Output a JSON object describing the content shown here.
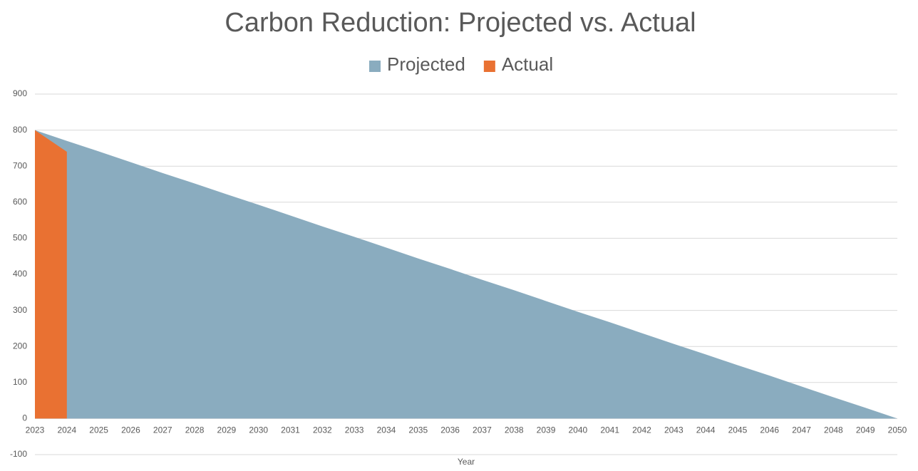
{
  "chart_data": {
    "type": "area",
    "title": "Carbon Reduction: Projected vs. Actual",
    "x_label": "Year",
    "categories": [
      "2023",
      "2024",
      "2025",
      "2026",
      "2027",
      "2028",
      "2029",
      "2030",
      "2031",
      "2032",
      "2033",
      "2034",
      "2035",
      "2036",
      "2037",
      "2038",
      "2039",
      "2040",
      "2041",
      "2042",
      "2043",
      "2044",
      "2045",
      "2046",
      "2047",
      "2048",
      "2049",
      "2050"
    ],
    "series": [
      {
        "name": "Projected",
        "color": "#8aacbf",
        "values": [
          800,
          770,
          741,
          711,
          681,
          652,
          622,
          593,
          563,
          533,
          504,
          474,
          444,
          415,
          385,
          356,
          326,
          296,
          267,
          237,
          207,
          178,
          148,
          119,
          89,
          59,
          30,
          0
        ]
      },
      {
        "name": "Actual",
        "color": "#e97132",
        "values": [
          800,
          740,
          null,
          null,
          null,
          null,
          null,
          null,
          null,
          null,
          null,
          null,
          null,
          null,
          null,
          null,
          null,
          null,
          null,
          null,
          null,
          null,
          null,
          null,
          null,
          null,
          null,
          null
        ]
      }
    ],
    "ylim": [
      -100,
      900
    ],
    "yticks": [
      -100,
      0,
      100,
      200,
      300,
      400,
      500,
      600,
      700,
      800,
      900
    ],
    "grid": true,
    "legend": "top"
  }
}
